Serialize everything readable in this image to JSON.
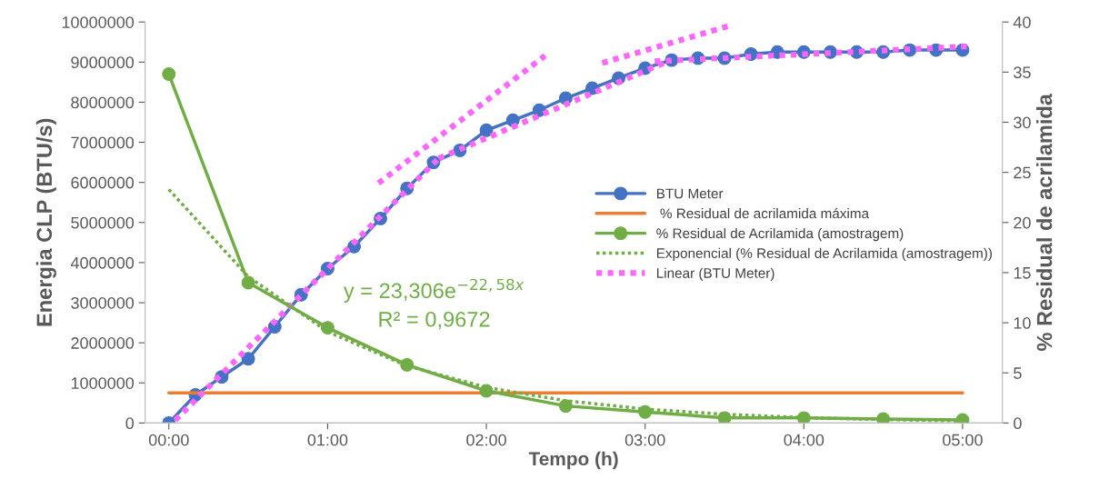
{
  "chart_data": {
    "type": "line",
    "xlabel": "Tempo (h)",
    "ylabel": "Energia CLP (BTU/s)",
    "y2label": "% Residual de acrilamida",
    "xlim": [
      -0.15,
      5.25
    ],
    "xticks": [
      {
        "value": 0,
        "label": "00:00"
      },
      {
        "value": 1,
        "label": "01:00"
      },
      {
        "value": 2,
        "label": "02:00"
      },
      {
        "value": 3,
        "label": "03:00"
      },
      {
        "value": 4,
        "label": "04:00"
      },
      {
        "value": 5,
        "label": "05:00"
      }
    ],
    "ylim": [
      0,
      10000000
    ],
    "yticks": [
      0,
      1000000,
      2000000,
      3000000,
      4000000,
      5000000,
      6000000,
      7000000,
      8000000,
      9000000,
      10000000
    ],
    "y2lim": [
      0,
      40
    ],
    "y2ticks": [
      0,
      5,
      10,
      15,
      20,
      25,
      30,
      35,
      40
    ],
    "grid": false,
    "legend": "right",
    "annotations": [
      "y = 23,306e$^{−22,58x}$",
      "R² = 0,9672"
    ],
    "series": [
      {
        "name": "BTU Meter",
        "color": "#4472c4",
        "marker": "circle",
        "line_style": "solid",
        "x": [
          0,
          0.167,
          0.333,
          0.5,
          0.667,
          0.833,
          1,
          1.167,
          1.333,
          1.5,
          1.667,
          1.833,
          2,
          2.167,
          2.333,
          2.5,
          2.667,
          2.833,
          3,
          3.167,
          3.333,
          3.5,
          3.667,
          3.833,
          4,
          4.167,
          4.333,
          4.5,
          4.667,
          4.833,
          5
        ],
        "values": [
          0,
          700000,
          1150000,
          1600000,
          2400000,
          3200000,
          3850000,
          4400000,
          5100000,
          5850000,
          6500000,
          6800000,
          7300000,
          7550000,
          7800000,
          8100000,
          8350000,
          8600000,
          8850000,
          9050000,
          9100000,
          9100000,
          9200000,
          9250000,
          9250000,
          9250000,
          9250000,
          9250000,
          9300000,
          9300000,
          9300000
        ]
      },
      {
        "name": " % Residual de acrilamida máxima",
        "color": "#ed7d31",
        "marker": "none",
        "line_style": "solid",
        "x": [
          0,
          5
        ],
        "values": [
          750000,
          750000
        ]
      },
      {
        "name": "% Residual de Acrilamida (amostragem)",
        "color": "#70ad47",
        "marker": "circle",
        "line_style": "solid",
        "axis": "y2",
        "x": [
          0,
          0.5,
          1,
          1.5,
          2,
          2.5,
          3,
          3.5,
          4,
          4.5,
          5
        ],
        "values": [
          34.8,
          14,
          9.5,
          5.8,
          3.2,
          1.7,
          1.1,
          0.5,
          0.5,
          0.4,
          0.3
        ]
      },
      {
        "name": "Exponencial (% Residual de Acrilamida (amostragem))",
        "color": "#70ad47",
        "marker": "none",
        "line_style": "dotted",
        "axis": "y2",
        "x": [
          0,
          0.5,
          1,
          1.5,
          2,
          2.5,
          3,
          3.5,
          4,
          4.5,
          5
        ],
        "values": [
          23.3,
          14.6,
          9.1,
          5.7,
          3.55,
          2.22,
          1.39,
          0.87,
          0.54,
          0.34,
          0.21
        ]
      },
      {
        "name": "Linear (BTU Meter)",
        "color": "#ff66ff",
        "marker": "none",
        "line_style": "dotted",
        "x": [
          0.04,
          1.7
        ],
        "values": [
          70000,
          6600000
        ]
      },
      {
        "color": "#ff66ff",
        "marker": "none",
        "line_style": "dotted",
        "x": [
          1.32,
          2.37
        ],
        "values": [
          5980000,
          9160000
        ]
      },
      {
        "color": "#ff66ff",
        "marker": "none",
        "line_style": "dotted",
        "x": [
          1.7,
          3.16
        ],
        "values": [
          6600000,
          9050000
        ]
      },
      {
        "color": "#ff66ff",
        "marker": "none",
        "line_style": "dotted",
        "x": [
          2.73,
          3.52
        ],
        "values": [
          8980000,
          9890000
        ]
      },
      {
        "color": "#ff66ff",
        "marker": "none",
        "line_style": "dotted",
        "x": [
          3.06,
          5.03
        ],
        "values": [
          9020000,
          9390000
        ]
      }
    ]
  }
}
